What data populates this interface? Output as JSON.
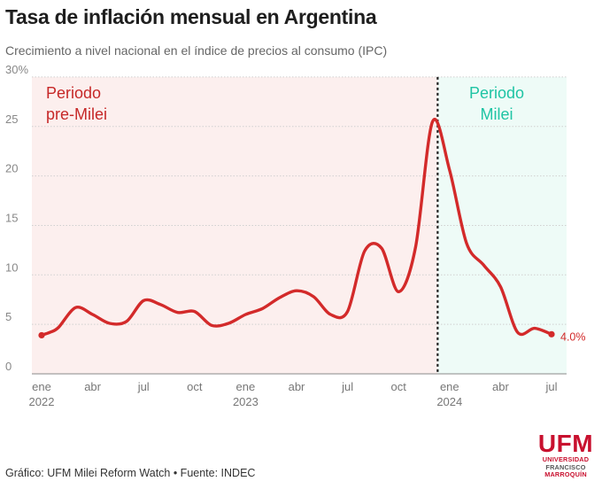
{
  "header": {
    "title": "Tasa de inflación mensual en Argentina",
    "subtitle": "Crecimiento a nivel nacional en el índice de precios al consumo (IPC)"
  },
  "footer": {
    "source": "Gráfico: UFM Milei Reform Watch • Fuente: INDEC"
  },
  "logo": {
    "main": "UFM",
    "line1": "UNIVERSIDAD",
    "line2": "FRANCISCO",
    "line3": "MARROQUÍN"
  },
  "colors": {
    "line": "#d32a2a",
    "pre_bg": "#fcefee",
    "post_bg": "#eefbf7",
    "pre_label": "#c62828",
    "post_label": "#1fc4a4"
  },
  "chart_data": {
    "type": "line",
    "title": "Tasa de inflación mensual en Argentina",
    "ylim": [
      0,
      30
    ],
    "yticks": [
      "30%",
      "25",
      "20",
      "15",
      "10",
      "5",
      "0"
    ],
    "xticks": [
      {
        "month": 0,
        "label": "ene",
        "year": "2022"
      },
      {
        "month": 3,
        "label": "abr",
        "year": ""
      },
      {
        "month": 6,
        "label": "jul",
        "year": ""
      },
      {
        "month": 9,
        "label": "oct",
        "year": ""
      },
      {
        "month": 12,
        "label": "ene",
        "year": "2023"
      },
      {
        "month": 15,
        "label": "abr",
        "year": ""
      },
      {
        "month": 18,
        "label": "jul",
        "year": ""
      },
      {
        "month": 21,
        "label": "oct",
        "year": ""
      },
      {
        "month": 24,
        "label": "ene",
        "year": "2024"
      },
      {
        "month": 27,
        "label": "abr",
        "year": ""
      },
      {
        "month": 30,
        "label": "jul",
        "year": ""
      }
    ],
    "regions": [
      {
        "label_lines": [
          "Periodo",
          "pre-Milei"
        ],
        "from_month": 0,
        "to_month": 23.3
      },
      {
        "label_lines": [
          "Periodo",
          "Milei"
        ],
        "from_month": 23.3,
        "to_month": 31
      }
    ],
    "divider_month": 23.3,
    "x_months": [
      0,
      0.5,
      1,
      2,
      3,
      4,
      5,
      6,
      7,
      8,
      9,
      10,
      11,
      12,
      13,
      14,
      15,
      16,
      17,
      18,
      19,
      20,
      21,
      22,
      23,
      24,
      25,
      26,
      27,
      28,
      29,
      30
    ],
    "values": [
      3.9,
      4.2,
      4.7,
      6.7,
      6.0,
      5.1,
      5.3,
      7.4,
      7.0,
      6.2,
      6.3,
      4.9,
      5.1,
      6.0,
      6.6,
      7.7,
      8.4,
      7.8,
      6.0,
      6.3,
      12.4,
      12.7,
      8.3,
      12.8,
      25.5,
      20.6,
      13.2,
      11.0,
      8.8,
      4.2,
      4.6,
      4.0
    ],
    "end_label": "4.0%"
  }
}
